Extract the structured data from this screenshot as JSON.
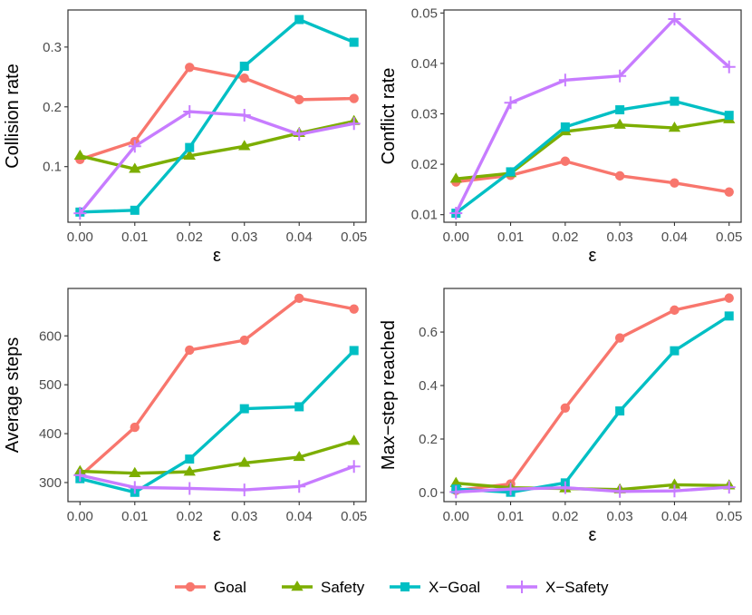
{
  "legend": [
    {
      "name": "Goal",
      "color": "#F8766D",
      "shape": "circle"
    },
    {
      "name": "Safety",
      "color": "#7CAE00",
      "shape": "triangle"
    },
    {
      "name": "X−Goal",
      "color": "#00BFC4",
      "shape": "square"
    },
    {
      "name": "X−Safety",
      "color": "#C77CFF",
      "shape": "plus"
    }
  ],
  "chart_data": [
    {
      "type": "line",
      "xlabel": "ε",
      "ylabel": "Collision rate",
      "x": [
        0.0,
        0.01,
        0.02,
        0.03,
        0.04,
        0.05
      ],
      "xticks": [
        "0.00",
        "0.01",
        "0.02",
        "0.03",
        "0.04",
        "0.05"
      ],
      "xlim": [
        -0.0022,
        0.0522
      ],
      "yticks": [
        0.1,
        0.2,
        0.3
      ],
      "ytick_labels": [
        "0.1",
        "0.2",
        "0.3"
      ],
      "ylim": [
        0.007,
        0.362
      ],
      "series": [
        {
          "name": "Goal",
          "values": [
            0.112,
            0.142,
            0.266,
            0.248,
            0.212,
            0.214
          ]
        },
        {
          "name": "Safety",
          "values": [
            0.118,
            0.096,
            0.118,
            0.134,
            0.156,
            0.176
          ]
        },
        {
          "name": "X−Goal",
          "values": [
            0.024,
            0.027,
            0.132,
            0.268,
            0.346,
            0.308
          ]
        },
        {
          "name": "X−Safety",
          "values": [
            0.022,
            0.134,
            0.192,
            0.186,
            0.154,
            0.172
          ]
        }
      ]
    },
    {
      "type": "line",
      "xlabel": "ε",
      "ylabel": "Conflict rate",
      "x": [
        0.0,
        0.01,
        0.02,
        0.03,
        0.04,
        0.05
      ],
      "xticks": [
        "0.00",
        "0.01",
        "0.02",
        "0.03",
        "0.04",
        "0.05"
      ],
      "xlim": [
        -0.0022,
        0.0522
      ],
      "yticks": [
        0.01,
        0.02,
        0.03,
        0.04,
        0.05
      ],
      "ytick_labels": [
        "0.01",
        "0.02",
        "0.03",
        "0.04",
        "0.05"
      ],
      "ylim": [
        0.0085,
        0.0506
      ],
      "series": [
        {
          "name": "Goal",
          "values": [
            0.0165,
            0.0178,
            0.0206,
            0.0177,
            0.0163,
            0.0145
          ]
        },
        {
          "name": "Safety",
          "values": [
            0.0171,
            0.0182,
            0.0265,
            0.0278,
            0.0272,
            0.0289
          ]
        },
        {
          "name": "X−Goal",
          "values": [
            0.0103,
            0.0185,
            0.0274,
            0.0308,
            0.0325,
            0.0297
          ]
        },
        {
          "name": "X−Safety",
          "values": [
            0.0103,
            0.0322,
            0.0367,
            0.0375,
            0.0488,
            0.0393
          ]
        }
      ]
    },
    {
      "type": "line",
      "xlabel": "ε",
      "ylabel": "Average steps",
      "x": [
        0.0,
        0.01,
        0.02,
        0.03,
        0.04,
        0.05
      ],
      "xticks": [
        "0.00",
        "0.01",
        "0.02",
        "0.03",
        "0.04",
        "0.05"
      ],
      "xlim": [
        -0.0022,
        0.0522
      ],
      "yticks": [
        300,
        400,
        500,
        600
      ],
      "ytick_labels": [
        "300",
        "400",
        "500",
        "600"
      ],
      "ylim": [
        261,
        697
      ],
      "series": [
        {
          "name": "Goal",
          "values": [
            313,
            413,
            571,
            591,
            677,
            655
          ]
        },
        {
          "name": "Safety",
          "values": [
            323,
            319,
            322,
            340,
            352,
            385
          ]
        },
        {
          "name": "X−Goal",
          "values": [
            308,
            280,
            348,
            451,
            455,
            570
          ]
        },
        {
          "name": "X−Safety",
          "values": [
            315,
            290,
            288,
            285,
            292,
            333
          ]
        }
      ]
    },
    {
      "type": "line",
      "xlabel": "ε",
      "ylabel": "Max−step reached",
      "x": [
        0.0,
        0.01,
        0.02,
        0.03,
        0.04,
        0.05
      ],
      "xticks": [
        "0.00",
        "0.01",
        "0.02",
        "0.03",
        "0.04",
        "0.05"
      ],
      "xlim": [
        -0.0022,
        0.0522
      ],
      "yticks": [
        0.0,
        0.2,
        0.4,
        0.6
      ],
      "ytick_labels": [
        "0.0",
        "0.2",
        "0.4",
        "0.6"
      ],
      "ylim": [
        -0.034,
        0.763
      ],
      "series": [
        {
          "name": "Goal",
          "values": [
            0.008,
            0.032,
            0.316,
            0.578,
            0.682,
            0.727
          ]
        },
        {
          "name": "Safety",
          "values": [
            0.035,
            0.018,
            0.015,
            0.011,
            0.029,
            0.026
          ]
        },
        {
          "name": "X−Goal",
          "values": [
            0.013,
            0.001,
            0.036,
            0.305,
            0.53,
            0.66
          ]
        },
        {
          "name": "X−Safety",
          "values": [
            0.002,
            0.013,
            0.018,
            0.004,
            0.006,
            0.02
          ]
        }
      ]
    }
  ]
}
